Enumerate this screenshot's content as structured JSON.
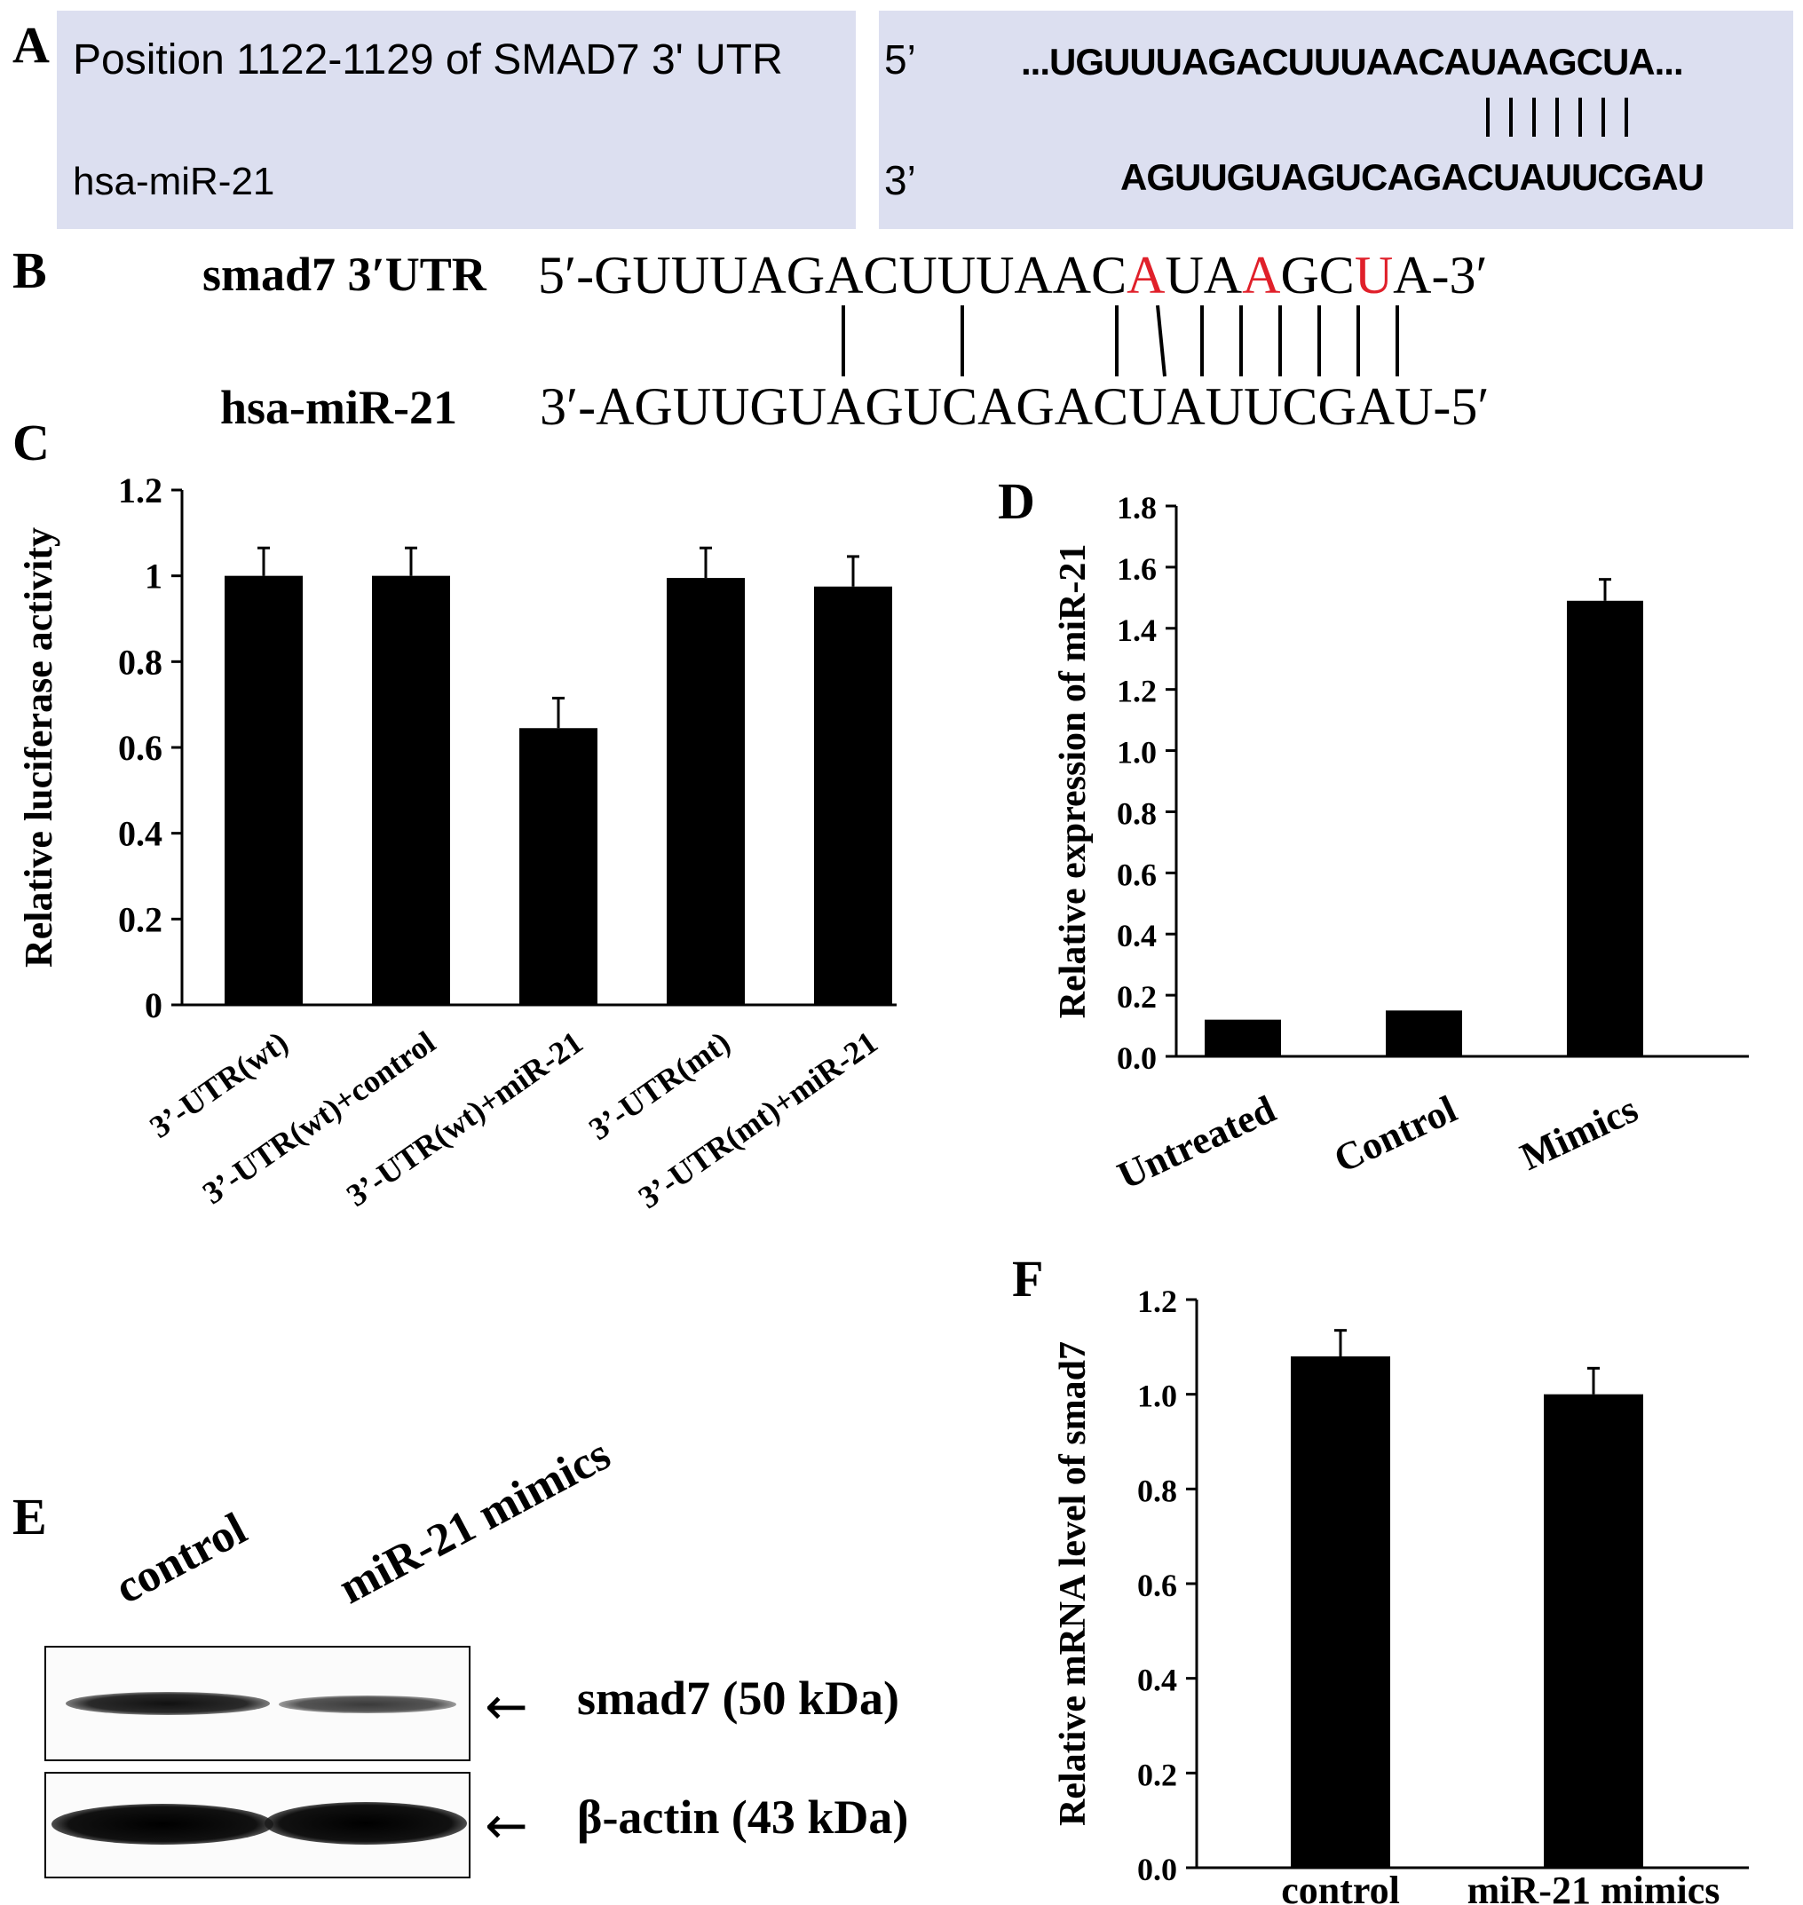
{
  "panels": {
    "A": {
      "label": "A",
      "position_text": "Position 1122-1129 of SMAD7 3' UTR",
      "mirna_name": "hsa-miR-21",
      "five_prime": "5’",
      "three_prime": "3’",
      "target_seq": "...UGUUUAGACUUUAACAUAAGCUA...",
      "mirna_seq": "AGUUGUAGUCAGACUAUUCGAU"
    },
    "B": {
      "label": "B",
      "target_name": "smad7 3′UTR",
      "mirna_name": "hsa-miR-21",
      "target_seq_parts": [
        "5′-GUUUAGACUUUAAC",
        "A",
        "UA",
        "A",
        "GC",
        "U",
        "A-3′"
      ],
      "mirna_seq": "3′-AGUUGUAGUCAGACUAUUCGAU-5′",
      "mutation_color": "#e0202a"
    },
    "C": {
      "label": "C"
    },
    "D": {
      "label": "D"
    },
    "E": {
      "label": "E",
      "lane_labels": [
        "control",
        "miR-21 mimics"
      ],
      "band_labels": [
        "smad7 (50 kDa)",
        "β-actin (43 kDa)"
      ],
      "arrow": "←"
    },
    "F": {
      "label": "F"
    }
  },
  "chart_data": [
    {
      "panel": "C",
      "type": "bar",
      "ylabel": "Relative luciferase activity",
      "xlabel": "",
      "categories": [
        "3’-UTR(wt)",
        "3’-UTR(wt)+control",
        "3’-UTR(wt)+miR-21",
        "3’-UTR(mt)",
        "3’-UTR(mt)+miR-21"
      ],
      "values": [
        1.0,
        1.0,
        0.645,
        0.995,
        0.975
      ],
      "errors": [
        0.065,
        0.065,
        0.07,
        0.07,
        0.07
      ],
      "ylim": [
        0,
        1.2
      ],
      "yticks": [
        "0",
        "0.2",
        "0.4",
        "0.6",
        "0.8",
        "1",
        "1.2"
      ],
      "ytick_values": [
        0,
        0.2,
        0.4,
        0.6,
        0.8,
        1.0,
        1.2
      ],
      "bar_color": "#000000"
    },
    {
      "panel": "D",
      "type": "bar",
      "ylabel": "Relative expression of miR-21",
      "xlabel": "",
      "categories": [
        "Untreated",
        "Control",
        "Mimics"
      ],
      "values": [
        0.12,
        0.15,
        1.49
      ],
      "errors": [
        0,
        0,
        0.07
      ],
      "ylim": [
        0,
        1.8
      ],
      "yticks": [
        "0.0",
        "0.2",
        "0.4",
        "0.6",
        "0.8",
        "1.0",
        "1.2",
        "1.4",
        "1.6",
        "1.8"
      ],
      "ytick_values": [
        0,
        0.2,
        0.4,
        0.6,
        0.8,
        1.0,
        1.2,
        1.4,
        1.6,
        1.8
      ],
      "bar_color": "#000000"
    },
    {
      "panel": "F",
      "type": "bar",
      "ylabel": "Relative mRNA level of smad7",
      "xlabel": "",
      "categories": [
        "control",
        "miR-21 mimics"
      ],
      "values": [
        1.08,
        1.0
      ],
      "errors": [
        0.055,
        0.055
      ],
      "ylim": [
        0,
        1.2
      ],
      "yticks": [
        "0.0",
        "0.2",
        "0.4",
        "0.6",
        "0.8",
        "1.0",
        "1.2"
      ],
      "ytick_values": [
        0,
        0.2,
        0.4,
        0.6,
        0.8,
        1.0,
        1.2
      ],
      "bar_color": "#000000"
    }
  ]
}
